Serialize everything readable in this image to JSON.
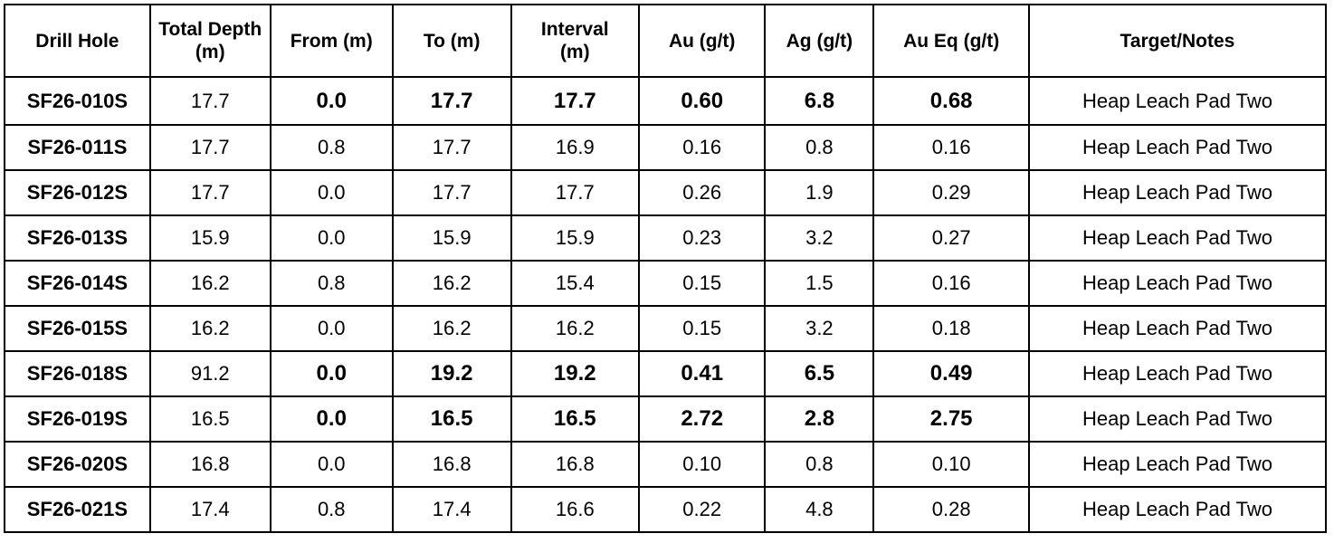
{
  "table": {
    "headers": [
      [
        "Drill Hole"
      ],
      [
        "Total Depth",
        "(m)"
      ],
      [
        "From (m)"
      ],
      [
        "To (m)"
      ],
      [
        "Interval",
        "(m)"
      ],
      [
        "Au (g/t)"
      ],
      [
        "Ag (g/t)"
      ],
      [
        "Au Eq (g/t)"
      ],
      [
        "Target/Notes"
      ]
    ],
    "rows": [
      {
        "cells": [
          "SF26-010S",
          "17.7",
          "0.0",
          "17.7",
          "17.7",
          "0.60",
          "6.8",
          "0.68",
          "Heap Leach Pad Two"
        ],
        "highlighted": true
      },
      {
        "cells": [
          "SF26-011S",
          "17.7",
          "0.8",
          "17.7",
          "16.9",
          "0.16",
          "0.8",
          "0.16",
          "Heap Leach Pad Two"
        ],
        "highlighted": false
      },
      {
        "cells": [
          "SF26-012S",
          "17.7",
          "0.0",
          "17.7",
          "17.7",
          "0.26",
          "1.9",
          "0.29",
          "Heap Leach Pad Two"
        ],
        "highlighted": false
      },
      {
        "cells": [
          "SF26-013S",
          "15.9",
          "0.0",
          "15.9",
          "15.9",
          "0.23",
          "3.2",
          "0.27",
          "Heap Leach Pad Two"
        ],
        "highlighted": false
      },
      {
        "cells": [
          "SF26-014S",
          "16.2",
          "0.8",
          "16.2",
          "15.4",
          "0.15",
          "1.5",
          "0.16",
          "Heap Leach Pad Two"
        ],
        "highlighted": false
      },
      {
        "cells": [
          "SF26-015S",
          "16.2",
          "0.0",
          "16.2",
          "16.2",
          "0.15",
          "3.2",
          "0.18",
          "Heap Leach Pad Two"
        ],
        "highlighted": false
      },
      {
        "cells": [
          "SF26-018S",
          "91.2",
          "0.0",
          "19.2",
          "19.2",
          "0.41",
          "6.5",
          "0.49",
          "Heap Leach Pad Two"
        ],
        "highlighted": true
      },
      {
        "cells": [
          "SF26-019S",
          "16.5",
          "0.0",
          "16.5",
          "16.5",
          "2.72",
          "2.8",
          "2.75",
          "Heap Leach Pad Two"
        ],
        "highlighted": true
      },
      {
        "cells": [
          "SF26-020S",
          "16.8",
          "0.0",
          "16.8",
          "16.8",
          "0.10",
          "0.8",
          "0.10",
          "Heap Leach Pad Two"
        ],
        "highlighted": false
      },
      {
        "cells": [
          "SF26-021S",
          "17.4",
          "0.8",
          "17.4",
          "16.6",
          "0.22",
          "4.8",
          "0.28",
          "Heap Leach Pad Two"
        ],
        "highlighted": false
      }
    ]
  }
}
